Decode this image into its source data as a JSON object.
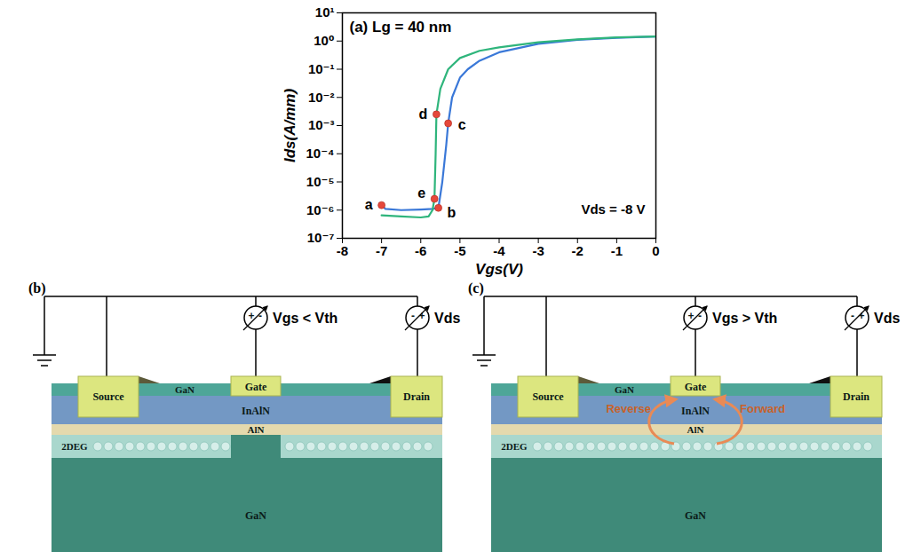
{
  "chart_data": {
    "type": "line",
    "title": "(a) Lg = 40 nm",
    "annotation": "Vds = -8 V",
    "x_label": "Vgs(V)",
    "y_label": "Ids(A/mm)",
    "log": "y",
    "grid": false,
    "xlim": [
      -8,
      0
    ],
    "xticks": [
      -8,
      -7,
      -6,
      -5,
      -4,
      -3,
      -2,
      -1,
      0
    ],
    "ylim": [
      1e-07,
      10
    ],
    "yticks": [
      {
        "value": 1e-07,
        "label": "10⁻⁷"
      },
      {
        "value": 1e-06,
        "label": "10⁻⁶"
      },
      {
        "value": 1e-05,
        "label": "10⁻⁵"
      },
      {
        "value": 0.0001,
        "label": "10⁻⁴"
      },
      {
        "value": 0.001,
        "label": "10⁻³"
      },
      {
        "value": 0.01,
        "label": "10⁻²"
      },
      {
        "value": 0.1,
        "label": "10⁻¹"
      },
      {
        "value": 1,
        "label": "10⁰"
      },
      {
        "value": 10,
        "label": "10¹"
      }
    ],
    "series": [
      {
        "color": "#3a78d8",
        "x": [
          -7,
          -6.9,
          -6.5,
          -6,
          -5.7,
          -5.55,
          -5.45,
          -5.35,
          -5.3,
          -5.2,
          -5,
          -4.8,
          -4.5,
          -4,
          -3,
          -2,
          -1,
          0
        ],
        "values": [
          1.5e-06,
          1.1e-06,
          1e-06,
          1.05e-06,
          1.1e-06,
          1.2e-06,
          1e-05,
          0.0002,
          0.0012,
          0.01,
          0.05,
          0.1,
          0.2,
          0.4,
          0.8,
          1.1,
          1.3,
          1.45
        ]
      },
      {
        "color": "#2fb57c",
        "x": [
          -7,
          -6.5,
          -6,
          -5.8,
          -5.7,
          -5.65,
          -5.62,
          -5.6,
          -5.5,
          -5.3,
          -5,
          -4.5,
          -4,
          -3,
          -2,
          -1,
          0
        ],
        "values": [
          6.5e-07,
          6e-07,
          5.5e-07,
          6e-07,
          1e-06,
          2.5e-06,
          0.0001,
          0.0025,
          0.02,
          0.1,
          0.25,
          0.45,
          0.6,
          0.9,
          1.15,
          1.35,
          1.45
        ]
      }
    ],
    "points": [
      {
        "label": "a",
        "x": -7,
        "y": 1.5e-06
      },
      {
        "label": "b",
        "x": -5.55,
        "y": 1.2e-06
      },
      {
        "label": "c",
        "x": -5.3,
        "y": 0.0012
      },
      {
        "label": "d",
        "x": -5.6,
        "y": 0.0025
      },
      {
        "label": "e",
        "x": -5.65,
        "y": 2.5e-06
      }
    ],
    "points_color": "#e5483b"
  },
  "diagrams": [
    {
      "panel": "(b)",
      "gate_bias": "Vgs < Vth",
      "drain_bias": "Vds",
      "gate_source_signs": [
        "+",
        "-"
      ],
      "drain_source_signs": [
        "-",
        "+"
      ],
      "contacts": [
        "Source",
        "Gate",
        "Drain"
      ],
      "layers": {
        "cap": "GaN",
        "barrier": "InAlN",
        "spacer": "AlN",
        "channel": "2DEG",
        "buffer": "GaN"
      }
    },
    {
      "panel": "(c)",
      "gate_bias": "Vgs > Vth",
      "drain_bias": "Vds",
      "gate_source_signs": [
        "+",
        "-"
      ],
      "drain_source_signs": [
        "-",
        "+"
      ],
      "contacts": [
        "Source",
        "Gate",
        "Drain"
      ],
      "layers": {
        "cap": "GaN",
        "barrier": "InAlN",
        "spacer": "AlN",
        "channel": "2DEG",
        "buffer": "GaN"
      },
      "arrows": [
        "Reverse",
        "Forward"
      ]
    }
  ]
}
